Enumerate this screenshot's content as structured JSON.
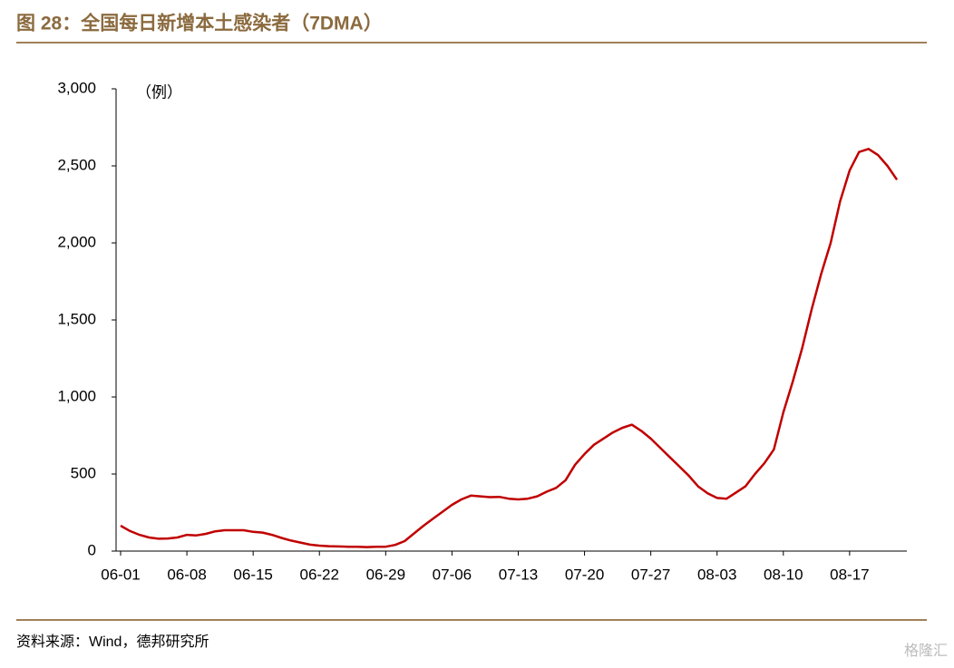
{
  "chart_data": {
    "type": "line",
    "title": "图 28：全国每日新增本土感染者（7DMA）",
    "y_unit": "（例）",
    "source": "资料来源：Wind，德邦研究所",
    "watermark": "格隆汇",
    "categories": [
      "06-01",
      null,
      null,
      null,
      null,
      null,
      null,
      "06-08",
      null,
      null,
      null,
      null,
      null,
      null,
      "06-15",
      null,
      null,
      null,
      null,
      null,
      null,
      "06-22",
      null,
      null,
      null,
      null,
      null,
      null,
      "06-29",
      null,
      null,
      null,
      null,
      null,
      null,
      "07-06",
      null,
      null,
      null,
      null,
      null,
      null,
      "07-13",
      null,
      null,
      null,
      null,
      null,
      null,
      "07-20",
      null,
      null,
      null,
      null,
      null,
      null,
      "07-27",
      null,
      null,
      null,
      null,
      null,
      null,
      "08-03",
      null,
      null,
      null,
      null,
      null,
      null,
      "08-10",
      null,
      null,
      null,
      null,
      null,
      null,
      "08-17",
      null,
      null,
      null,
      null,
      null
    ],
    "series": [
      {
        "name": "全国每日新增本土感染者（7DMA）",
        "color": "#c00000",
        "values": [
          165,
          130,
          105,
          88,
          80,
          82,
          88,
          105,
          102,
          112,
          128,
          135,
          135,
          135,
          125,
          120,
          105,
          85,
          68,
          55,
          42,
          35,
          32,
          30,
          28,
          28,
          26,
          28,
          28,
          40,
          65,
          115,
          165,
          210,
          255,
          300,
          335,
          360,
          355,
          350,
          352,
          340,
          335,
          340,
          355,
          385,
          410,
          460,
          560,
          630,
          690,
          730,
          770,
          800,
          820,
          780,
          730,
          670,
          610,
          550,
          490,
          420,
          375,
          345,
          340,
          380,
          420,
          500,
          570,
          660,
          900,
          1100,
          1320,
          1570,
          1800,
          2000,
          2270,
          2470,
          2590,
          2610,
          2570,
          2500,
          2410
        ]
      }
    ],
    "ylim": [
      0,
      3000
    ],
    "yticks": [
      0,
      500,
      {
        "value": 1000,
        "label": "1,000"
      },
      {
        "value": 1500,
        "label": "1,500"
      },
      {
        "value": 2000,
        "label": "2,000"
      },
      {
        "value": 2500,
        "label": "2,500"
      },
      {
        "value": 3000,
        "label": "3,000"
      }
    ],
    "grid": false
  }
}
